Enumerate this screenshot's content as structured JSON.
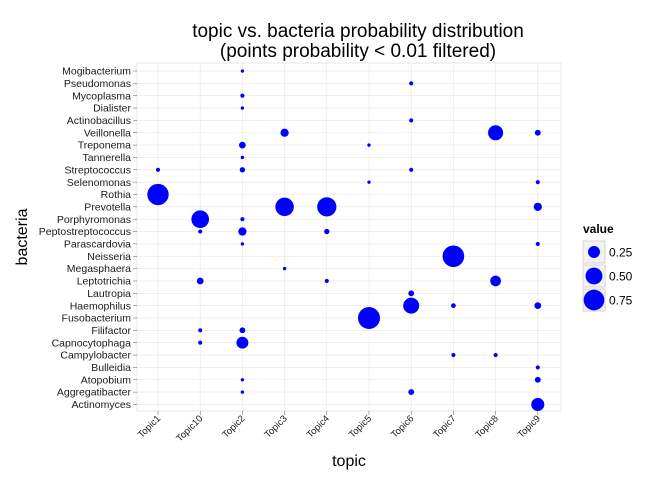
{
  "chart_data": {
    "type": "scatter",
    "title_line1": "topic vs. bacteria probability distribution",
    "title_line2": "(points probability < 0.01  filtered)",
    "xlabel": "topic",
    "ylabel": "bacteria",
    "x_categories": [
      "Topic1",
      "Topic10",
      "Topic2",
      "Topic3",
      "Topic4",
      "Topic5",
      "Topic6",
      "Topic7",
      "Topic8",
      "Topic9"
    ],
    "y_categories": [
      "Mogibacterium",
      "Pseudomonas",
      "Mycoplasma",
      "Dialister",
      "Actinobacillus",
      "Veillonella",
      "Treponema",
      "Tannerella",
      "Streptococcus",
      "Selenomonas",
      "Rothia",
      "Prevotella",
      "Porphyromonas",
      "Peptostreptococcus",
      "Parascardovia",
      "Neisseria",
      "Megasphaera",
      "Leptotrichia",
      "Lautropia",
      "Haemophilus",
      "Fusobacterium",
      "Filifactor",
      "Capnocytophaga",
      "Campylobacter",
      "Bulleidia",
      "Atopobium",
      "Aggregatibacter",
      "Actinomyces"
    ],
    "legend": {
      "title": "value",
      "labels": [
        "0.25",
        "0.50",
        "0.75"
      ],
      "values": [
        0.25,
        0.5,
        0.75
      ],
      "position": "right"
    },
    "point_color": "#0000ff",
    "grid": true,
    "points": [
      {
        "x": "Topic2",
        "y": "Mogibacterium",
        "value": 0.02
      },
      {
        "x": "Topic6",
        "y": "Pseudomonas",
        "value": 0.03
      },
      {
        "x": "Topic2",
        "y": "Mycoplasma",
        "value": 0.03
      },
      {
        "x": "Topic2",
        "y": "Dialister",
        "value": 0.02
      },
      {
        "x": "Topic6",
        "y": "Actinobacillus",
        "value": 0.03
      },
      {
        "x": "Topic3",
        "y": "Veillonella",
        "value": 0.12
      },
      {
        "x": "Topic8",
        "y": "Veillonella",
        "value": 0.4
      },
      {
        "x": "Topic9",
        "y": "Veillonella",
        "value": 0.06
      },
      {
        "x": "Topic2",
        "y": "Treponema",
        "value": 0.08
      },
      {
        "x": "Topic5",
        "y": "Treponema",
        "value": 0.02
      },
      {
        "x": "Topic2",
        "y": "Tannerella",
        "value": 0.02
      },
      {
        "x": "Topic1",
        "y": "Streptococcus",
        "value": 0.03
      },
      {
        "x": "Topic2",
        "y": "Streptococcus",
        "value": 0.05
      },
      {
        "x": "Topic6",
        "y": "Streptococcus",
        "value": 0.03
      },
      {
        "x": "Topic5",
        "y": "Selenomonas",
        "value": 0.02
      },
      {
        "x": "Topic9",
        "y": "Selenomonas",
        "value": 0.03
      },
      {
        "x": "Topic1",
        "y": "Rothia",
        "value": 0.8
      },
      {
        "x": "Topic3",
        "y": "Prevotella",
        "value": 0.6
      },
      {
        "x": "Topic4",
        "y": "Prevotella",
        "value": 0.65
      },
      {
        "x": "Topic9",
        "y": "Prevotella",
        "value": 0.12
      },
      {
        "x": "Topic10",
        "y": "Porphyromonas",
        "value": 0.55
      },
      {
        "x": "Topic2",
        "y": "Porphyromonas",
        "value": 0.03
      },
      {
        "x": "Topic10",
        "y": "Peptostreptococcus",
        "value": 0.03
      },
      {
        "x": "Topic2",
        "y": "Peptostreptococcus",
        "value": 0.12
      },
      {
        "x": "Topic4",
        "y": "Peptostreptococcus",
        "value": 0.05
      },
      {
        "x": "Topic2",
        "y": "Parascardovia",
        "value": 0.02
      },
      {
        "x": "Topic9",
        "y": "Parascardovia",
        "value": 0.03
      },
      {
        "x": "Topic7",
        "y": "Neisseria",
        "value": 0.82
      },
      {
        "x": "Topic3",
        "y": "Megasphaera",
        "value": 0.02
      },
      {
        "x": "Topic10",
        "y": "Leptotrichia",
        "value": 0.08
      },
      {
        "x": "Topic4",
        "y": "Leptotrichia",
        "value": 0.03
      },
      {
        "x": "Topic8",
        "y": "Leptotrichia",
        "value": 0.2
      },
      {
        "x": "Topic6",
        "y": "Lautropia",
        "value": 0.06
      },
      {
        "x": "Topic6",
        "y": "Haemophilus",
        "value": 0.45
      },
      {
        "x": "Topic7",
        "y": "Haemophilus",
        "value": 0.04
      },
      {
        "x": "Topic9",
        "y": "Haemophilus",
        "value": 0.08
      },
      {
        "x": "Topic5",
        "y": "Fusobacterium",
        "value": 0.85
      },
      {
        "x": "Topic10",
        "y": "Filifactor",
        "value": 0.03
      },
      {
        "x": "Topic2",
        "y": "Filifactor",
        "value": 0.06
      },
      {
        "x": "Topic10",
        "y": "Capnocytophaga",
        "value": 0.03
      },
      {
        "x": "Topic2",
        "y": "Capnocytophaga",
        "value": 0.25
      },
      {
        "x": "Topic7",
        "y": "Campylobacter",
        "value": 0.03
      },
      {
        "x": "Topic8",
        "y": "Campylobacter",
        "value": 0.03
      },
      {
        "x": "Topic9",
        "y": "Bulleidia",
        "value": 0.03
      },
      {
        "x": "Topic2",
        "y": "Atopobium",
        "value": 0.02
      },
      {
        "x": "Topic9",
        "y": "Atopobium",
        "value": 0.06
      },
      {
        "x": "Topic2",
        "y": "Aggregatibacter",
        "value": 0.02
      },
      {
        "x": "Topic6",
        "y": "Aggregatibacter",
        "value": 0.06
      },
      {
        "x": "Topic9",
        "y": "Actinomyces",
        "value": 0.3
      }
    ]
  }
}
